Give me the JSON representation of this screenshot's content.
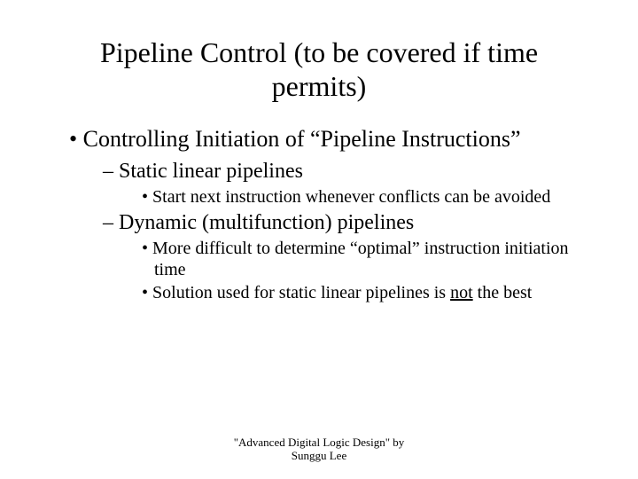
{
  "title": "Pipeline Control (to be covered if time permits)",
  "bullets": {
    "l1_a": "Controlling Initiation of “Pipeline Instructions”",
    "l2_a": "Static linear pipelines",
    "l3_a": "Start next instruction whenever conflicts can be avoided",
    "l2_b": "Dynamic (multifunction) pipelines",
    "l3_b": "More difficult to determine “optimal” instruction initiation time",
    "l3_c_prefix": "Solution used for static linear pipelines is ",
    "l3_c_underlined": "not",
    "l3_c_suffix": " the best"
  },
  "footer": {
    "line1": "\"Advanced Digital Logic Design\" by",
    "line2": "Sunggu Lee"
  }
}
